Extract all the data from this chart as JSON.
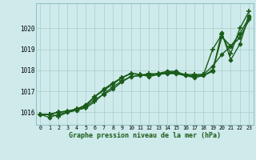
{
  "xlabel": "Graphe pression niveau de la mer (hPa)",
  "bg_color": "#ceeaea",
  "grid_color": "#aacccc",
  "line_color": "#1a5c1a",
  "x_ticks": [
    0,
    1,
    2,
    3,
    4,
    5,
    6,
    7,
    8,
    9,
    10,
    11,
    12,
    13,
    14,
    15,
    16,
    17,
    18,
    19,
    20,
    21,
    22,
    23
  ],
  "ylim": [
    1015.4,
    1021.2
  ],
  "xlim": [
    -0.5,
    23.5
  ],
  "yticks": [
    1016,
    1017,
    1018,
    1019,
    1020
  ],
  "series": [
    [
      1015.9,
      1015.9,
      1015.8,
      1016.0,
      1016.1,
      1016.2,
      1016.5,
      1016.9,
      1017.2,
      1017.5,
      1017.7,
      1017.75,
      1017.85,
      1017.8,
      1017.9,
      1017.9,
      1017.8,
      1017.8,
      1017.8,
      1019.0,
      1019.7,
      1018.8,
      1020.0,
      1020.8
    ],
    [
      1015.9,
      1015.75,
      1015.9,
      1016.0,
      1016.1,
      1016.25,
      1016.6,
      1016.85,
      1017.1,
      1017.45,
      1017.7,
      1017.75,
      1017.8,
      1017.85,
      1017.95,
      1017.95,
      1017.75,
      1017.75,
      1017.8,
      1018.2,
      1018.75,
      1019.15,
      1019.75,
      1020.5
    ],
    [
      1015.9,
      1015.9,
      1016.0,
      1016.05,
      1016.15,
      1016.3,
      1016.75,
      1017.05,
      1017.35,
      1017.65,
      1017.85,
      1017.8,
      1017.75,
      1017.85,
      1017.85,
      1017.85,
      1017.75,
      1017.7,
      1017.75,
      1018.0,
      1019.6,
      1019.15,
      1019.55,
      1020.4
    ],
    [
      1015.9,
      1015.9,
      1016.0,
      1016.05,
      1016.15,
      1016.35,
      1016.75,
      1017.1,
      1017.4,
      1017.65,
      1017.85,
      1017.8,
      1017.7,
      1017.8,
      1017.85,
      1017.85,
      1017.75,
      1017.65,
      1017.75,
      1017.95,
      1019.8,
      1018.5,
      1019.25,
      1020.6
    ]
  ]
}
